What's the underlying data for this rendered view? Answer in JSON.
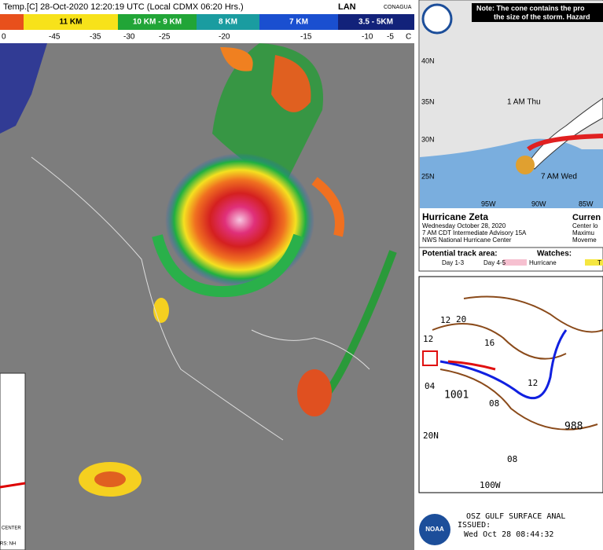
{
  "satellite": {
    "header": "Temp.[C] 28-Oct-2020 12:20:19 UTC (Local CDMX  06:20 Hrs.)",
    "logos": [
      "LAN",
      "CONAGUA"
    ],
    "scale_bands": [
      "11 KM",
      "10 KM - 9 KM",
      "8 KM",
      "7 KM",
      "3.5 - 5KM"
    ],
    "scale_temps": [
      "0",
      "-45",
      "-35",
      "-30",
      "-25",
      "-20",
      "-15",
      "-10",
      "-5",
      "C"
    ]
  },
  "cone_map": {
    "note": [
      "Note: The cone contains the pro",
      "the size of the storm. Hazard"
    ],
    "lat_labels": [
      "40N",
      "35N",
      "30N",
      "25N"
    ],
    "lon_labels": [
      "95W",
      "90W",
      "85W"
    ],
    "points": [
      "1 AM Thu",
      "7 AM Wed"
    ],
    "storm": "Hurricane Zeta",
    "date": "Wednesday October 28, 2020",
    "advisory": "7 AM CDT Intermediate Advisory 15A",
    "center": "NWS National Hurricane Center",
    "current": [
      "Curren",
      "Center lo",
      "Maximu",
      "Moveme"
    ],
    "legend": {
      "track_title": "Potential track area:",
      "track": [
        "Day 1-3",
        "Day 4-5"
      ],
      "watch_title": "Watches:",
      "watch": [
        "Hurricane",
        "T"
      ]
    }
  },
  "surface_map": {
    "pressures": [
      "1001",
      "988"
    ],
    "labels": [
      "20N",
      "100W",
      "12",
      "16",
      "20",
      "04",
      "08",
      "08",
      "12",
      "12"
    ],
    "title": "OSZ GULF SURFACE ANAL",
    "issued": "ISSUED:",
    "time": "Wed Oct 28 08:44:32",
    "logo": "NOAA"
  },
  "inset": {
    "text": [
      "CENTER",
      "RS: NH"
    ]
  }
}
